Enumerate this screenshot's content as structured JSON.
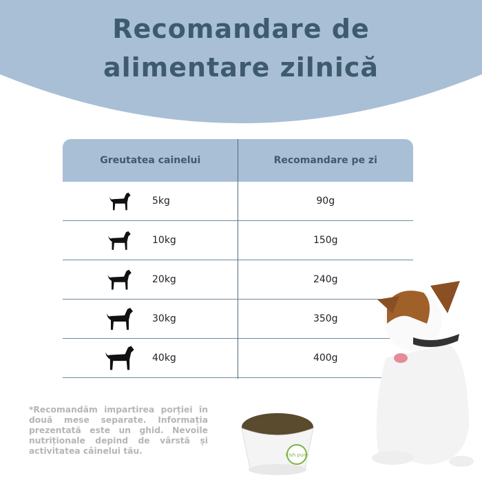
{
  "title": {
    "line1": "Recomandare de",
    "line2": "alimentare zilnică"
  },
  "table": {
    "headers": [
      "Greutatea cainelui",
      "Recomandare pe zi"
    ],
    "rows": [
      {
        "weight": "5kg",
        "amount": "90g",
        "icon": "small-dog-silhouette-icon"
      },
      {
        "weight": "10kg",
        "amount": "150g",
        "icon": "pug-silhouette-icon"
      },
      {
        "weight": "20kg",
        "amount": "240g",
        "icon": "medium-dog-silhouette-icon"
      },
      {
        "weight": "30kg",
        "amount": "350g",
        "icon": "large-dog-silhouette-icon"
      },
      {
        "weight": "40kg",
        "amount": "400g",
        "icon": "doberman-silhouette-icon"
      }
    ]
  },
  "note": "*Recomandăm impartirea porției în două mese separate. Informația prezentată este un ghid. Nevoile nutriționale depind de vârstă și activitatea câinelui tău.",
  "bowl_logo": "irish pure",
  "colors": {
    "accent": "#a9bfd6",
    "title": "#3e5b6d",
    "note": "#b5b5b5"
  }
}
